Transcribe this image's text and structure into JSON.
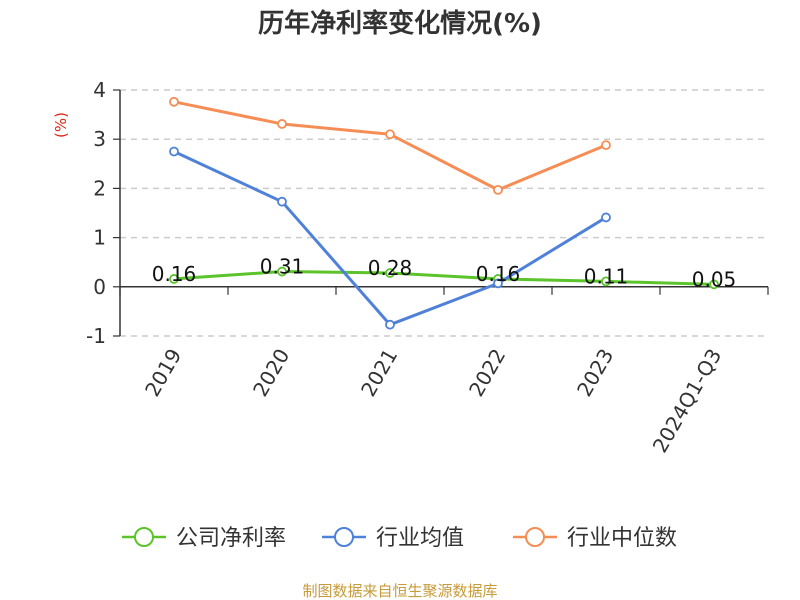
{
  "colors": {
    "company": "#5bc42b",
    "industry_avg": "#4f81d9",
    "industry_median": "#f58d55",
    "grid": "#cccccc",
    "ylabel": "#e0261a",
    "source": "#c79a3a"
  },
  "source_note": "制图数据来自恒生聚源数据库",
  "chart_data": {
    "type": "line",
    "title": "历年净利率变化情况(%)",
    "ylabel": "(%)",
    "xlabel": "",
    "categories": [
      "2019",
      "2020",
      "2021",
      "2022",
      "2023",
      "2024Q1-Q3"
    ],
    "ylim": [
      -1,
      4
    ],
    "yticks": [
      -1,
      0,
      1,
      2,
      3,
      4
    ],
    "grid": true,
    "legend_position": "bottom",
    "series": [
      {
        "name": "公司净利率",
        "color_key": "company",
        "values": [
          0.16,
          0.31,
          0.28,
          0.16,
          0.11,
          0.05
        ],
        "labels": [
          "0.16",
          "0.31",
          "0.28",
          "0.16",
          "0.11",
          "0.05"
        ]
      },
      {
        "name": "行业均值",
        "color_key": "industry_avg",
        "values": [
          2.75,
          1.73,
          -0.77,
          0.07,
          1.41,
          null
        ]
      },
      {
        "name": "行业中位数",
        "color_key": "industry_median",
        "values": [
          3.76,
          3.31,
          3.1,
          1.97,
          2.88,
          null
        ]
      }
    ]
  }
}
